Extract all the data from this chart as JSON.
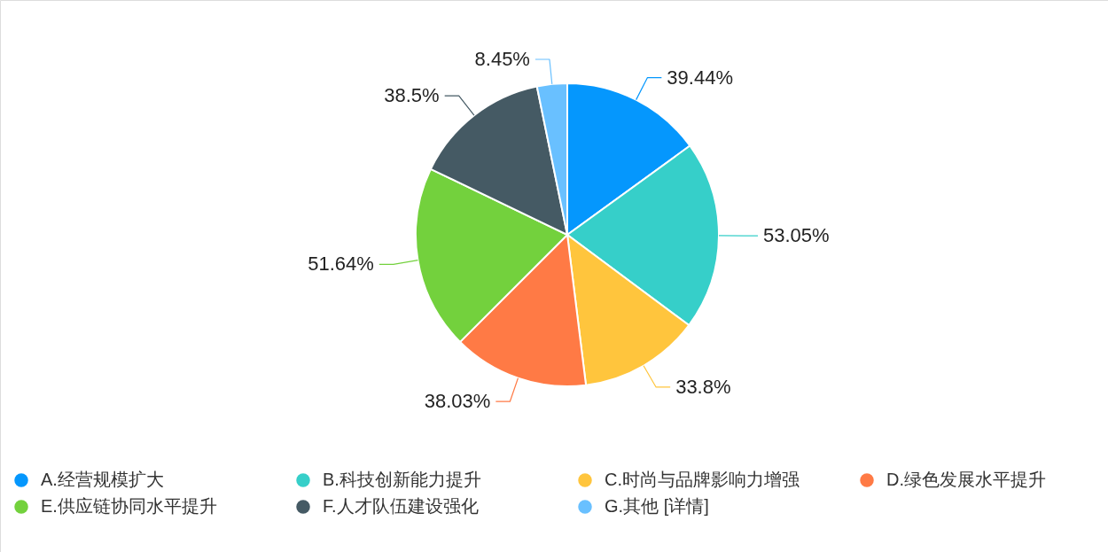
{
  "chart_data": {
    "type": "pie",
    "categories": [
      "A.经营规模扩大",
      "B.科技创新能力提升",
      "C.时尚与品牌影响力增强",
      "D.绿色发展水平提升",
      "E.供应链协同水平提升",
      "F.人才队伍建设强化",
      "G.其他 [详情]"
    ],
    "values": [
      39.44,
      53.05,
      33.8,
      38.03,
      51.64,
      38.5,
      8.45
    ],
    "colors": [
      "#0597fd",
      "#36cfc9",
      "#ffc53d",
      "#ff7a45",
      "#73d13d",
      "#455a64",
      "#69c0ff"
    ],
    "value_labels": [
      "39.44%",
      "53.05%",
      "33.8%",
      "38.03%",
      "51.64%",
      "38.5%",
      "8.45%"
    ],
    "legend": "bottom"
  }
}
